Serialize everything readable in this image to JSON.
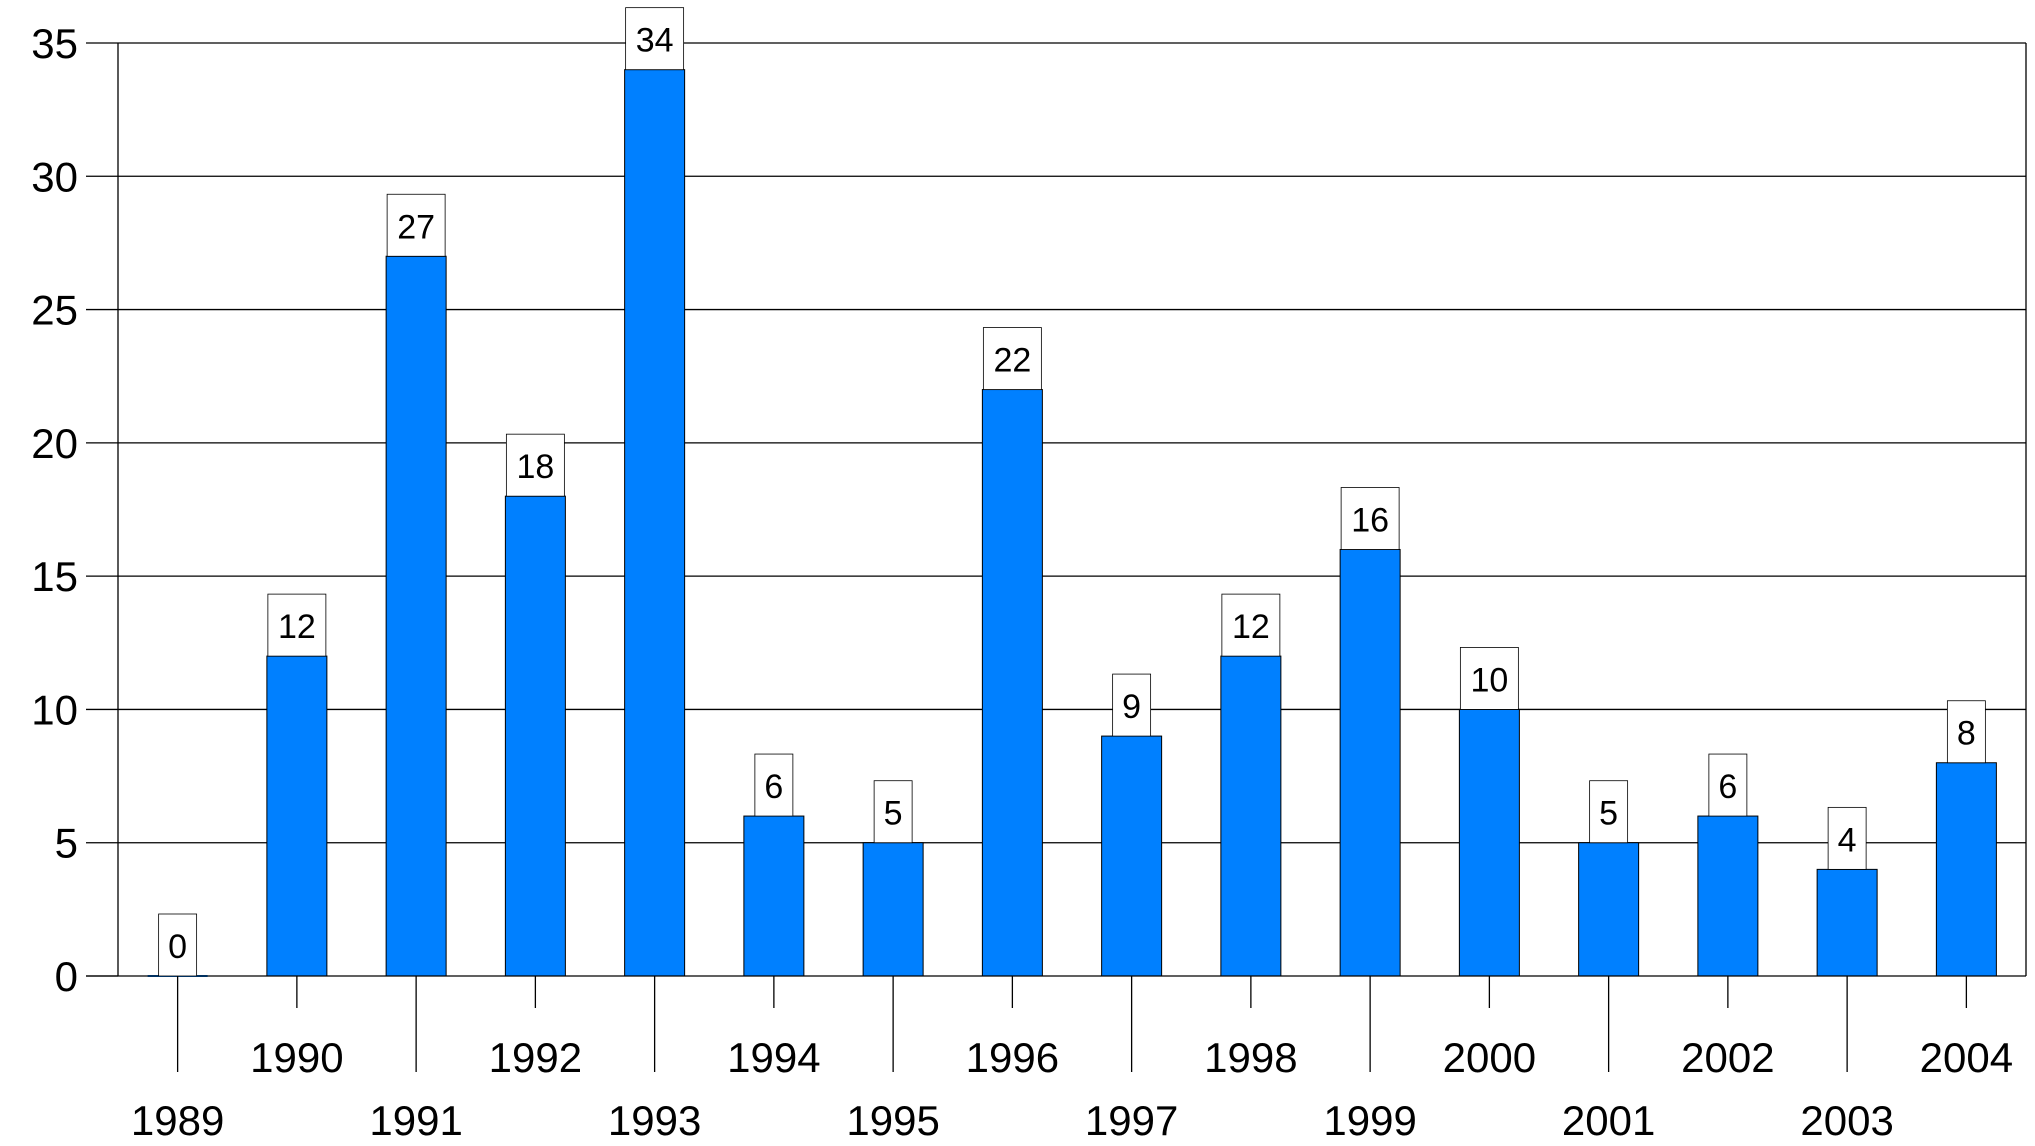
{
  "chart_data": {
    "type": "bar",
    "categories": [
      "1989",
      "1990",
      "1991",
      "1992",
      "1993",
      "1994",
      "1995",
      "1996",
      "1997",
      "1998",
      "1999",
      "2000",
      "2001",
      "2002",
      "2003",
      "2004"
    ],
    "values": [
      0,
      12,
      27,
      18,
      34,
      6,
      5,
      22,
      9,
      12,
      16,
      10,
      5,
      6,
      4,
      8
    ],
    "data_labels": [
      "0",
      "12",
      "27",
      "18",
      "34",
      "6",
      "5",
      "22",
      "9",
      "12",
      "16",
      "10",
      "5",
      "6",
      "4",
      "8"
    ],
    "y_ticks": [
      "0",
      "5",
      "10",
      "15",
      "20",
      "25",
      "30",
      "35"
    ],
    "ylim": [
      0,
      35
    ],
    "grid": true,
    "legend": "none",
    "title": "",
    "xlabel": "",
    "ylabel": "",
    "colors": {
      "bar": "#0080ff",
      "grid": "#000000",
      "label_box": "#ffffff"
    }
  }
}
